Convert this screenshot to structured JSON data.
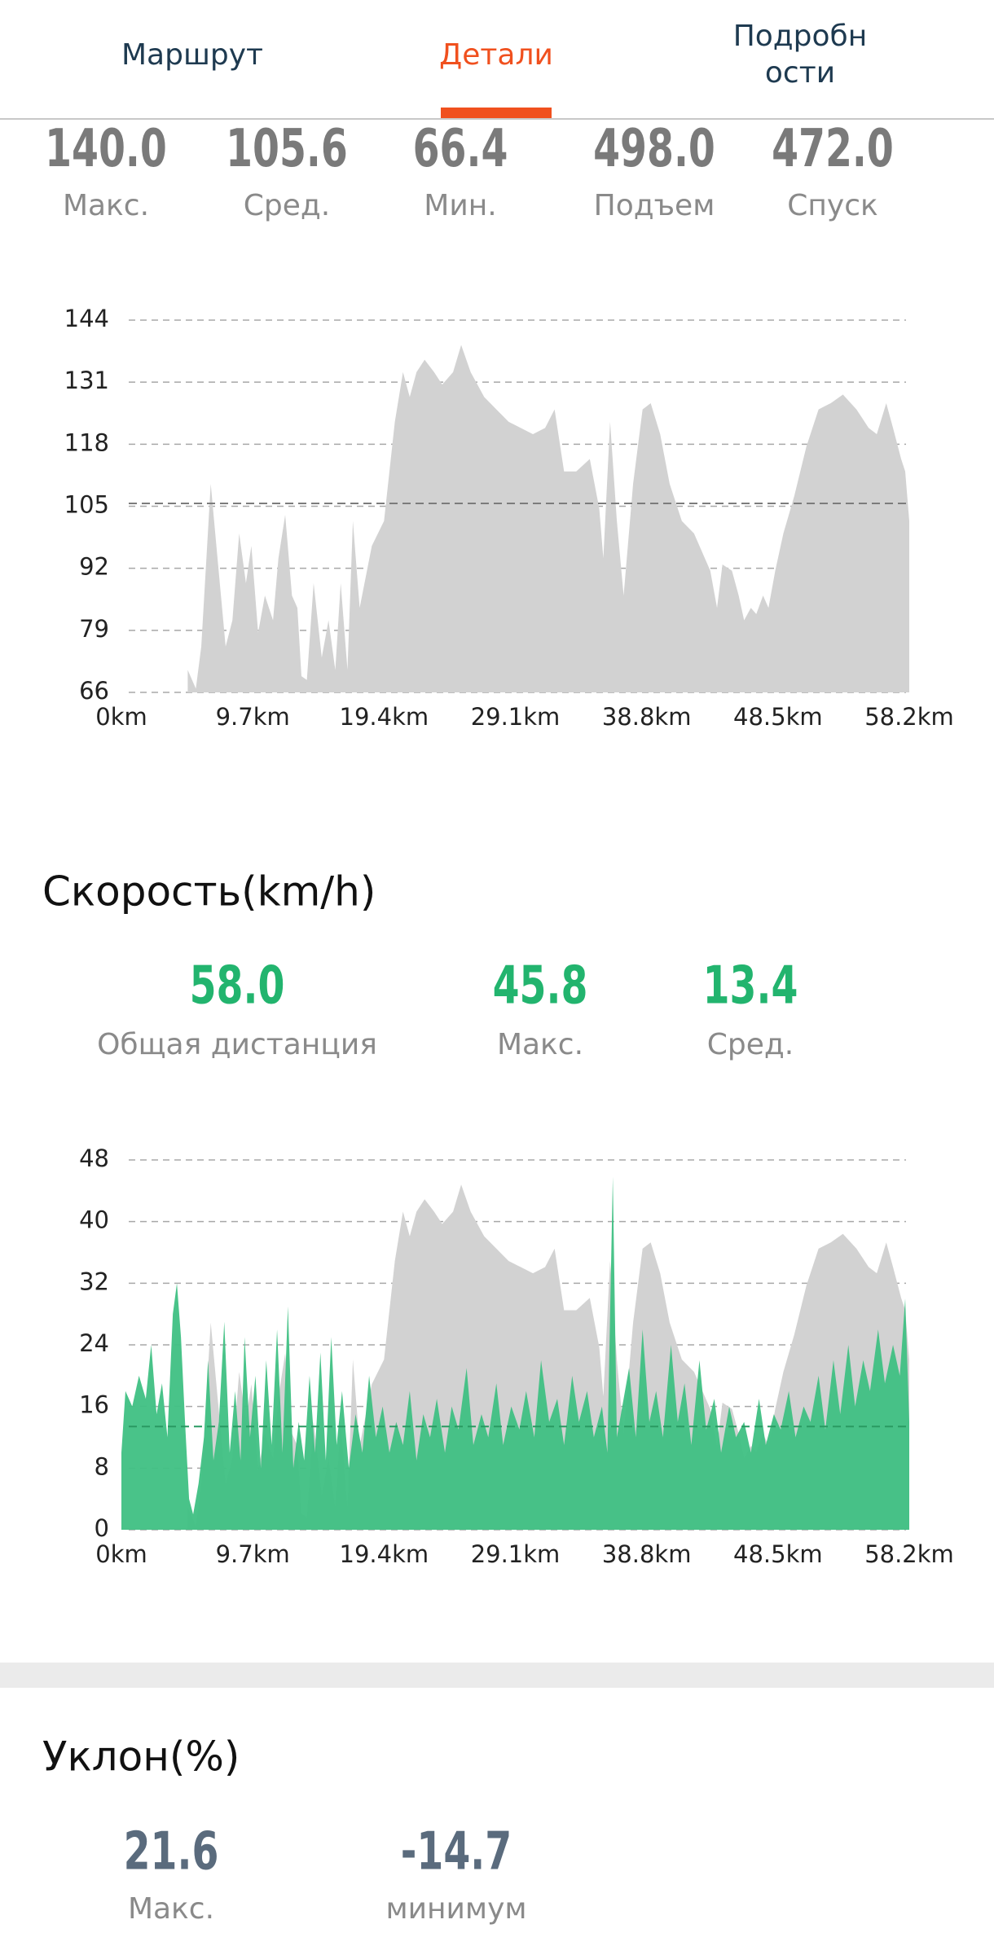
{
  "tabs": [
    {
      "lines": [
        "Маршрут"
      ],
      "active": false
    },
    {
      "lines": [
        "Детали"
      ],
      "active": true
    },
    {
      "lines": [
        "Подробн",
        "ости"
      ],
      "active": false
    }
  ],
  "elevation_stats": [
    {
      "value": "140.0",
      "label": "Макс."
    },
    {
      "value": "105.6",
      "label": "Сред."
    },
    {
      "value": "66.4",
      "label": "Мин."
    },
    {
      "value": "498.0",
      "label": "Подъем"
    },
    {
      "value": "472.0",
      "label": "Спуск"
    }
  ],
  "speed": {
    "title": "Скорость(km/h)",
    "stats": [
      {
        "value": "58.0",
        "label": "Общая дистанция"
      },
      {
        "value": "45.8",
        "label": "Макс."
      },
      {
        "value": "13.4",
        "label": "Сред."
      }
    ]
  },
  "slope": {
    "title": "Уклон(%)",
    "stats": [
      {
        "value": "21.6",
        "label": "Макс."
      },
      {
        "value": "-14.7",
        "label": "минимум"
      }
    ]
  },
  "chart_data": [
    {
      "type": "area",
      "color": "#d2d2d2",
      "reference_line": 105.6,
      "reference_color": "#7c7c7c",
      "grid": true,
      "xlim": [
        0,
        58.2
      ],
      "xticks": [
        {
          "value": 0,
          "label": "0km"
        },
        {
          "value": 9.7,
          "label": "9.7km"
        },
        {
          "value": 19.4,
          "label": "19.4km"
        },
        {
          "value": 29.1,
          "label": "29.1km"
        },
        {
          "value": 38.8,
          "label": "38.8km"
        },
        {
          "value": 48.5,
          "label": "48.5km"
        },
        {
          "value": 58.2,
          "label": "58.2km"
        }
      ],
      "ylim": [
        66,
        144
      ],
      "yticks": [
        66,
        79,
        92,
        105,
        118,
        131,
        144
      ],
      "x": [
        4.9,
        5.5,
        5.9,
        6.6,
        7.1,
        7.7,
        8.2,
        8.7,
        9.2,
        9.6,
        10.1,
        10.6,
        11.2,
        11.6,
        12.1,
        12.6,
        13.0,
        13.3,
        13.7,
        14.2,
        14.8,
        15.3,
        15.8,
        16.2,
        16.7,
        17.1,
        17.6,
        18.5,
        19.4,
        20.2,
        20.8,
        21.3,
        21.8,
        22.4,
        23.1,
        23.7,
        24.5,
        25.1,
        25.8,
        26.8,
        27.7,
        28.6,
        29.5,
        30.4,
        31.3,
        32.0,
        32.7,
        33.6,
        34.6,
        35.3,
        35.6,
        36.1,
        36.6,
        37.1,
        37.8,
        38.5,
        39.1,
        39.8,
        40.5,
        41.4,
        42.3,
        43.1,
        43.5,
        44.0,
        44.4,
        45.1,
        45.6,
        46.0,
        46.5,
        46.9,
        47.4,
        47.8,
        48.3,
        48.9,
        49.7,
        50.6,
        51.5,
        52.4,
        53.3,
        54.3,
        55.2,
        55.8,
        56.5,
        57.0,
        57.6,
        57.9,
        58.2
      ],
      "values": [
        70.7,
        66.8,
        75.6,
        109.7,
        94.1,
        75.6,
        81.1,
        99.3,
        88.9,
        96.7,
        78.5,
        86.3,
        81.1,
        94.1,
        103.2,
        86.3,
        83.7,
        69.4,
        68.6,
        88.9,
        73.3,
        81.1,
        70.7,
        88.9,
        70.7,
        101.9,
        83.7,
        96.7,
        101.9,
        122.7,
        133.1,
        127.9,
        133.1,
        135.7,
        133.1,
        130.5,
        133.1,
        138.8,
        133.1,
        127.9,
        125.3,
        122.7,
        121.4,
        120.1,
        121.4,
        125.3,
        112.3,
        112.3,
        114.9,
        104.5,
        94.1,
        122.7,
        101.9,
        86.3,
        109.7,
        125.3,
        126.6,
        120.1,
        109.7,
        101.9,
        99.3,
        94.1,
        91.5,
        83.7,
        92.8,
        91.5,
        86.3,
        81.1,
        83.7,
        82.4,
        86.3,
        83.7,
        91.5,
        99.3,
        107.1,
        117.5,
        125.3,
        126.6,
        128.4,
        125.3,
        121.4,
        120.1,
        126.6,
        121.4,
        114.9,
        112.3,
        101.9
      ]
    },
    {
      "type": "area",
      "color": "#3fc083",
      "reference_line": 13.4,
      "reference_color": "#2a9a62",
      "grid": true,
      "xlim": [
        0,
        58.2
      ],
      "xticks": [
        {
          "value": 0,
          "label": "0km"
        },
        {
          "value": 9.7,
          "label": "9.7km"
        },
        {
          "value": 19.4,
          "label": "19.4km"
        },
        {
          "value": 29.1,
          "label": "29.1km"
        },
        {
          "value": 38.8,
          "label": "38.8km"
        },
        {
          "value": 48.5,
          "label": "48.5km"
        },
        {
          "value": 58.2,
          "label": "58.2km"
        }
      ],
      "ylim": [
        0,
        48
      ],
      "yticks": [
        0,
        8,
        16,
        24,
        32,
        40,
        48
      ],
      "x": [
        0,
        0.3,
        0.8,
        1.3,
        1.8,
        2.2,
        2.6,
        3.0,
        3.4,
        3.8,
        4.1,
        4.4,
        4.7,
        5.0,
        5.3,
        5.7,
        6.1,
        6.4,
        6.8,
        7.2,
        7.6,
        8.0,
        8.4,
        8.8,
        9.1,
        9.5,
        9.9,
        10.3,
        10.7,
        11.1,
        11.5,
        11.9,
        12.3,
        12.7,
        13.1,
        13.5,
        13.9,
        14.3,
        14.7,
        15.1,
        15.5,
        15.9,
        16.3,
        16.8,
        17.3,
        17.8,
        18.3,
        18.8,
        19.3,
        19.8,
        20.3,
        20.8,
        21.3,
        21.8,
        22.3,
        22.8,
        23.3,
        23.9,
        24.4,
        24.9,
        25.5,
        26.0,
        26.6,
        27.1,
        27.7,
        28.2,
        28.8,
        29.4,
        29.9,
        30.5,
        31.0,
        31.6,
        32.2,
        32.7,
        33.3,
        33.8,
        34.4,
        34.9,
        35.5,
        35.9,
        36.3,
        36.6,
        37.0,
        37.5,
        38.0,
        38.5,
        39.0,
        39.5,
        40.0,
        40.6,
        41.1,
        41.6,
        42.1,
        42.7,
        43.2,
        43.8,
        44.3,
        44.9,
        45.4,
        46.0,
        46.5,
        47.1,
        47.6,
        48.2,
        48.7,
        49.3,
        49.8,
        50.4,
        50.9,
        51.5,
        52.0,
        52.6,
        53.1,
        53.7,
        54.2,
        54.8,
        55.3,
        55.9,
        56.4,
        57.0,
        57.5,
        57.9,
        58.2
      ],
      "values": [
        10,
        18,
        16,
        20,
        17,
        24,
        15,
        19,
        12,
        28,
        32,
        25,
        14,
        4,
        2,
        6,
        12,
        22,
        9,
        14,
        27,
        10,
        18,
        9,
        25,
        12,
        20,
        8,
        22,
        11,
        26,
        10,
        29,
        8,
        14,
        9,
        20,
        10,
        23,
        9,
        25,
        11,
        18,
        8,
        15,
        10,
        20,
        12,
        16,
        10,
        14,
        11,
        18,
        9,
        15,
        12,
        17,
        10,
        16,
        13,
        21,
        11,
        15,
        12,
        19,
        11,
        16,
        13,
        18,
        12,
        22,
        14,
        17,
        11,
        20,
        14,
        18,
        12,
        16,
        10,
        45.8,
        12,
        16,
        21,
        12,
        26,
        14,
        18,
        12,
        24,
        14,
        19,
        11,
        22,
        13,
        17,
        10,
        16,
        12,
        14,
        10,
        17,
        11,
        15,
        13,
        18,
        12,
        16,
        14,
        20,
        13,
        22,
        15,
        24,
        16,
        22,
        18,
        26,
        19,
        24,
        20,
        30,
        14
      ]
    }
  ]
}
